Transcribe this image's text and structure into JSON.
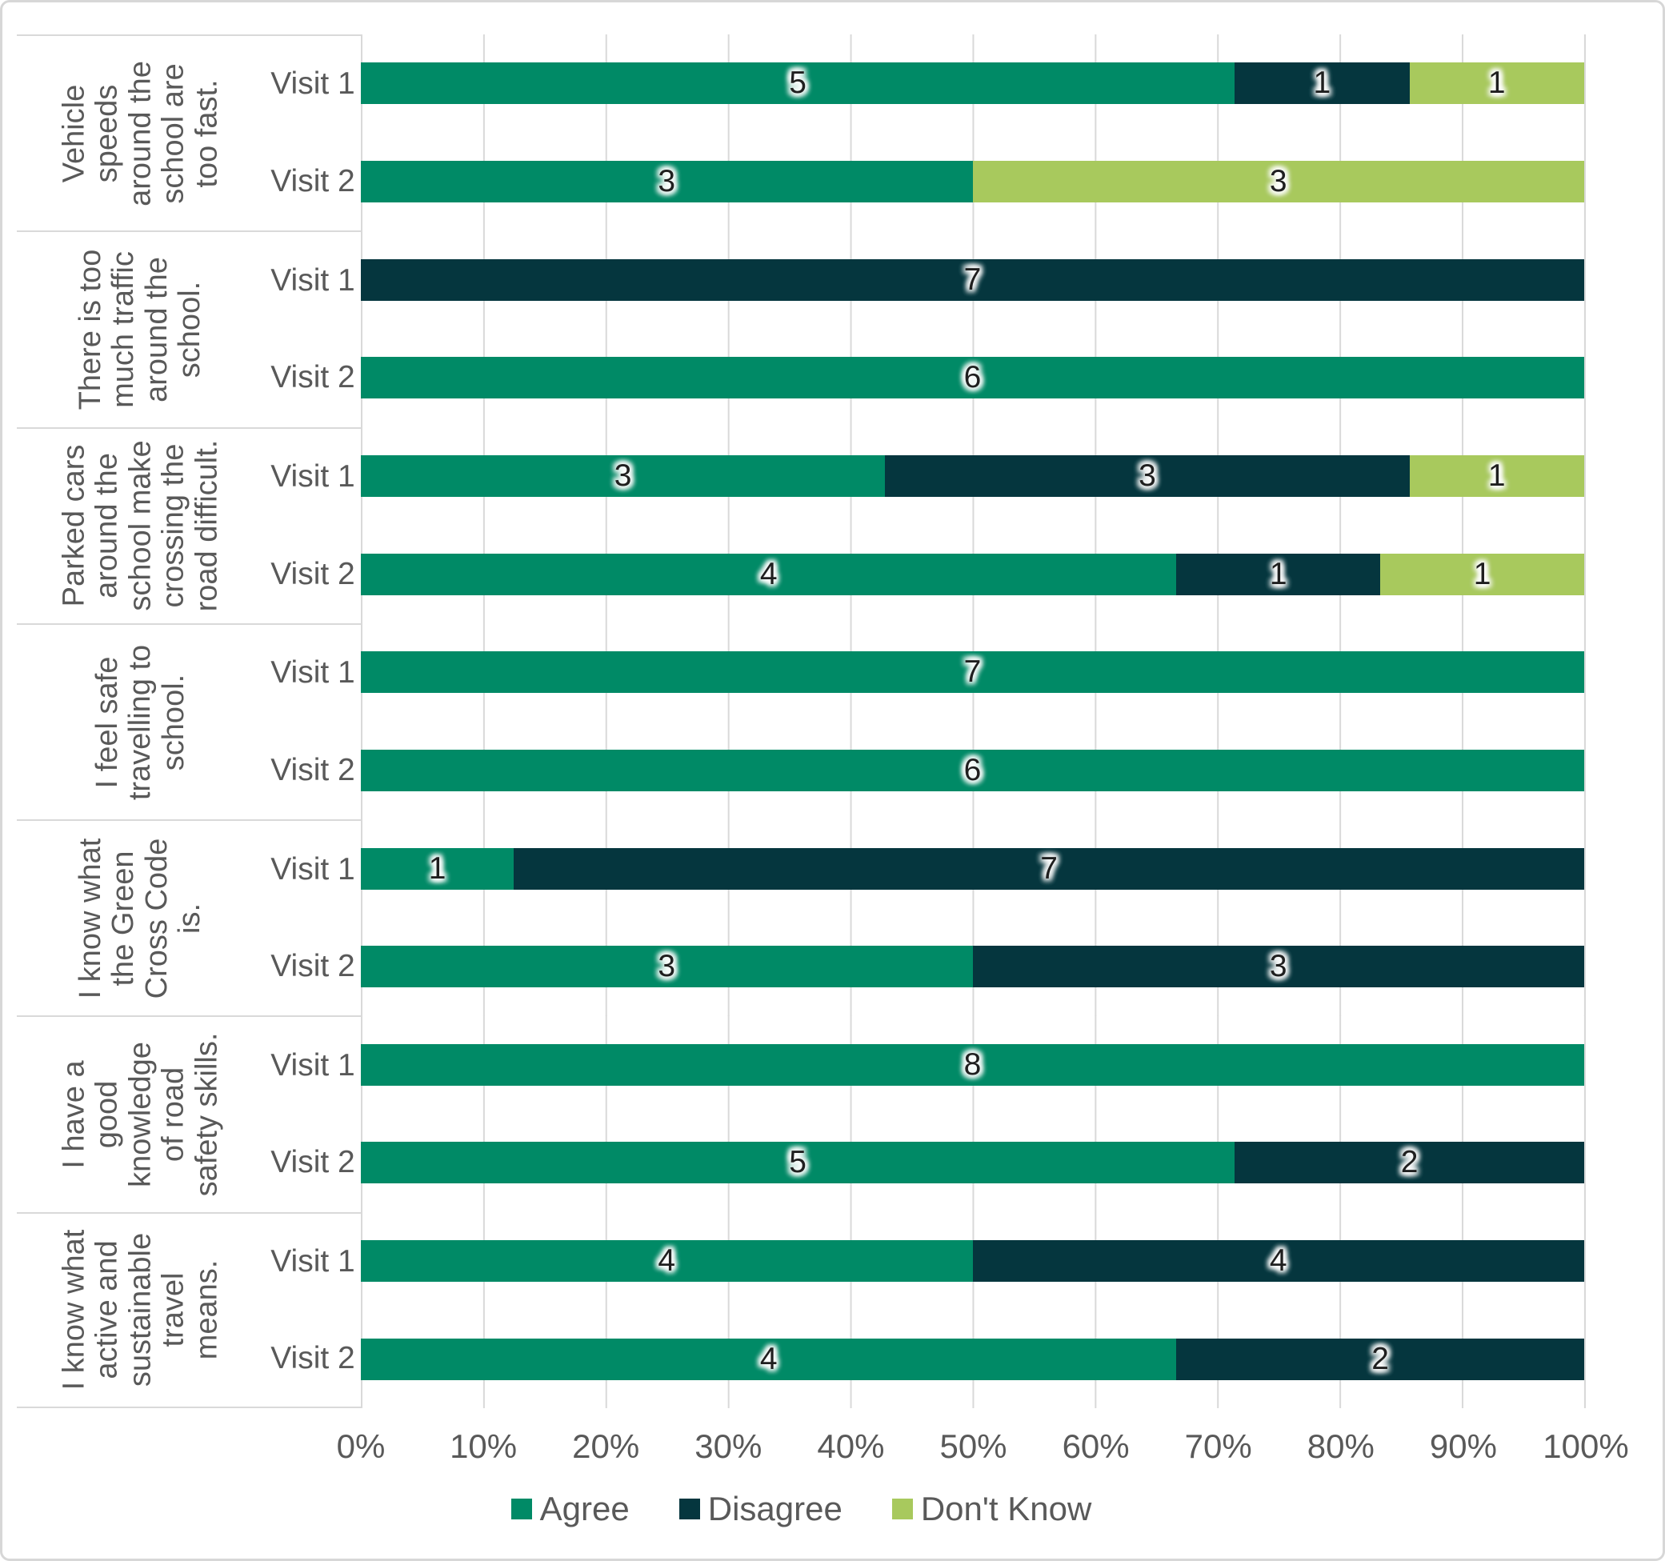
{
  "chart_data": {
    "type": "bar",
    "orientation": "horizontal",
    "stacked": true,
    "unit": "percent_of_respondents",
    "x_axis": {
      "ticks": [
        "0%",
        "10%",
        "20%",
        "30%",
        "40%",
        "50%",
        "60%",
        "70%",
        "80%",
        "90%",
        "100%"
      ],
      "min": 0,
      "max": 100,
      "grid": true
    },
    "legend": {
      "position": "bottom",
      "entries": [
        "Agree",
        "Disagree",
        "Don't Know"
      ]
    },
    "series_colors": {
      "Agree": "#008A66",
      "Disagree": "#05363E",
      "Don't Know": "#A8C95D"
    },
    "style": {
      "label_color": "#595959",
      "data_label_color": "#1F1F1F",
      "gridline_color": "#D9D9D9"
    },
    "groups": [
      {
        "category": "Vehicle\nspeeds\naround the\nschool are\ntoo fast.",
        "rows": [
          {
            "label": "Visit 1",
            "segments": [
              {
                "series": "Agree",
                "value": 5
              },
              {
                "series": "Disagree",
                "value": 1
              },
              {
                "series": "Don't Know",
                "value": 1
              }
            ]
          },
          {
            "label": "Visit 2",
            "segments": [
              {
                "series": "Agree",
                "value": 3
              },
              {
                "series": "Don't Know",
                "value": 3
              }
            ]
          }
        ]
      },
      {
        "category": "There is too\nmuch traffic\naround the\nschool.",
        "rows": [
          {
            "label": "Visit 1",
            "segments": [
              {
                "series": "Disagree",
                "value": 7
              }
            ]
          },
          {
            "label": "Visit 2",
            "segments": [
              {
                "series": "Agree",
                "value": 6
              }
            ]
          }
        ]
      },
      {
        "category": "Parked cars\naround the\nschool make\ncrossing the\nroad difficult.",
        "rows": [
          {
            "label": "Visit 1",
            "segments": [
              {
                "series": "Agree",
                "value": 3
              },
              {
                "series": "Disagree",
                "value": 3
              },
              {
                "series": "Don't Know",
                "value": 1
              }
            ]
          },
          {
            "label": "Visit 2",
            "segments": [
              {
                "series": "Agree",
                "value": 4
              },
              {
                "series": "Disagree",
                "value": 1
              },
              {
                "series": "Don't Know",
                "value": 1
              }
            ]
          }
        ]
      },
      {
        "category": "I feel safe\ntravelling to\nschool.",
        "rows": [
          {
            "label": "Visit 1",
            "segments": [
              {
                "series": "Agree",
                "value": 7
              }
            ]
          },
          {
            "label": "Visit 2",
            "segments": [
              {
                "series": "Agree",
                "value": 6
              }
            ]
          }
        ]
      },
      {
        "category": "I know what\nthe Green\nCross Code\nis.",
        "rows": [
          {
            "label": "Visit 1",
            "segments": [
              {
                "series": "Agree",
                "value": 1
              },
              {
                "series": "Disagree",
                "value": 7
              }
            ]
          },
          {
            "label": "Visit 2",
            "segments": [
              {
                "series": "Agree",
                "value": 3
              },
              {
                "series": "Disagree",
                "value": 3
              }
            ]
          }
        ]
      },
      {
        "category": "I have a\ngood\nknowledge\nof road\nsafety skills.",
        "rows": [
          {
            "label": "Visit 1",
            "segments": [
              {
                "series": "Agree",
                "value": 8
              }
            ]
          },
          {
            "label": "Visit 2",
            "segments": [
              {
                "series": "Agree",
                "value": 5
              },
              {
                "series": "Disagree",
                "value": 2
              }
            ]
          }
        ]
      },
      {
        "category": "I know what\nactive and\nsustainable\ntravel\nmeans.",
        "rows": [
          {
            "label": "Visit 1",
            "segments": [
              {
                "series": "Agree",
                "value": 4
              },
              {
                "series": "Disagree",
                "value": 4
              }
            ]
          },
          {
            "label": "Visit 2",
            "segments": [
              {
                "series": "Agree",
                "value": 4
              },
              {
                "series": "Disagree",
                "value": 2
              }
            ]
          }
        ]
      }
    ]
  }
}
